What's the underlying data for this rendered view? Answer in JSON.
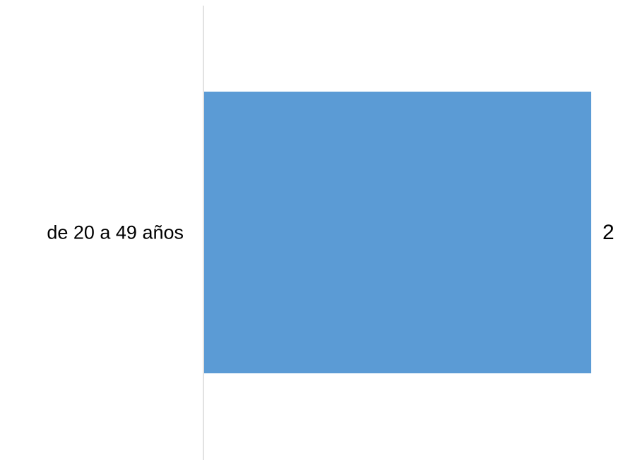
{
  "chart_data": {
    "type": "bar",
    "orientation": "horizontal",
    "categories": [
      "de 20 a 49 años"
    ],
    "values": [
      2
    ],
    "data_labels": [
      "2"
    ],
    "title": "",
    "xlabel": "",
    "ylabel": "",
    "xlim": [
      0,
      2
    ],
    "grid": false,
    "legend": "none",
    "colors": {
      "bar": "#5B9BD5",
      "axis": "#D9D9D9",
      "text": "#000000"
    }
  }
}
